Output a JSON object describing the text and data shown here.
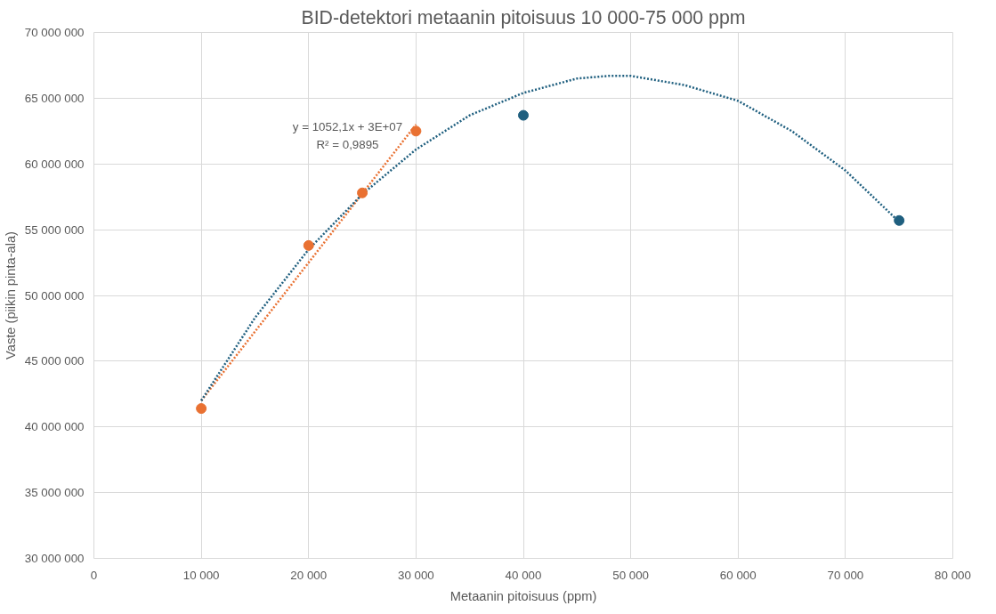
{
  "chart_data": {
    "type": "scatter",
    "title": "BID-detektori metaanin pitoisuus 10 000-75 000 ppm",
    "xlabel": "Metaanin pitoisuus (ppm)",
    "ylabel": "Vaste (piikin pinta-ala)",
    "xlim": [
      0,
      80000
    ],
    "ylim": [
      30000000,
      70000000
    ],
    "xticks": [
      {
        "value": 0,
        "label": "0"
      },
      {
        "value": 10000,
        "label": "10 000"
      },
      {
        "value": 20000,
        "label": "20 000"
      },
      {
        "value": 30000,
        "label": "30 000"
      },
      {
        "value": 40000,
        "label": "40 000"
      },
      {
        "value": 50000,
        "label": "50 000"
      },
      {
        "value": 60000,
        "label": "60 000"
      },
      {
        "value": 70000,
        "label": "70 000"
      },
      {
        "value": 80000,
        "label": "80 000"
      }
    ],
    "yticks": [
      {
        "value": 30000000,
        "label": "30 000 000"
      },
      {
        "value": 35000000,
        "label": "35 000 000"
      },
      {
        "value": 40000000,
        "label": "40 000 000"
      },
      {
        "value": 45000000,
        "label": "45 000 000"
      },
      {
        "value": 50000000,
        "label": "50 000 000"
      },
      {
        "value": 55000000,
        "label": "55 000 000"
      },
      {
        "value": 60000000,
        "label": "60 000 000"
      },
      {
        "value": 65000000,
        "label": "65 000 000"
      },
      {
        "value": 70000000,
        "label": "70 000 000"
      }
    ],
    "grid": true,
    "marker": "circle",
    "series": [
      {
        "type": "line",
        "line_style": "dotted",
        "marker": "none",
        "color": "#1f5f7f",
        "x": [
          10000,
          15000,
          20000,
          25000,
          30000,
          35000,
          40000,
          45000,
          48000,
          50000,
          55000,
          60000,
          65000,
          70000,
          75000
        ],
        "values": [
          42000000,
          48300000,
          53500000,
          57700000,
          61100000,
          63700000,
          65400000,
          66500000,
          66700000,
          66700000,
          66000000,
          64800000,
          62500000,
          59500000,
          55600000
        ]
      },
      {
        "type": "line",
        "line_style": "dotted",
        "marker": "none",
        "color": "#e97132",
        "x": [
          10000,
          30000
        ],
        "values": [
          42000000,
          63000000
        ]
      },
      {
        "type": "scatter",
        "color": "#1f5f7f",
        "x": [
          40000,
          75000
        ],
        "values": [
          63700000,
          55700000
        ]
      },
      {
        "type": "scatter",
        "color": "#e97132",
        "x": [
          10000,
          20000,
          25000,
          30000
        ],
        "values": [
          41400000,
          53800000,
          57800000,
          62500000
        ]
      }
    ],
    "annotations": [
      "y = 1052,1x + 3E+07",
      "R² = 0,9895"
    ]
  }
}
